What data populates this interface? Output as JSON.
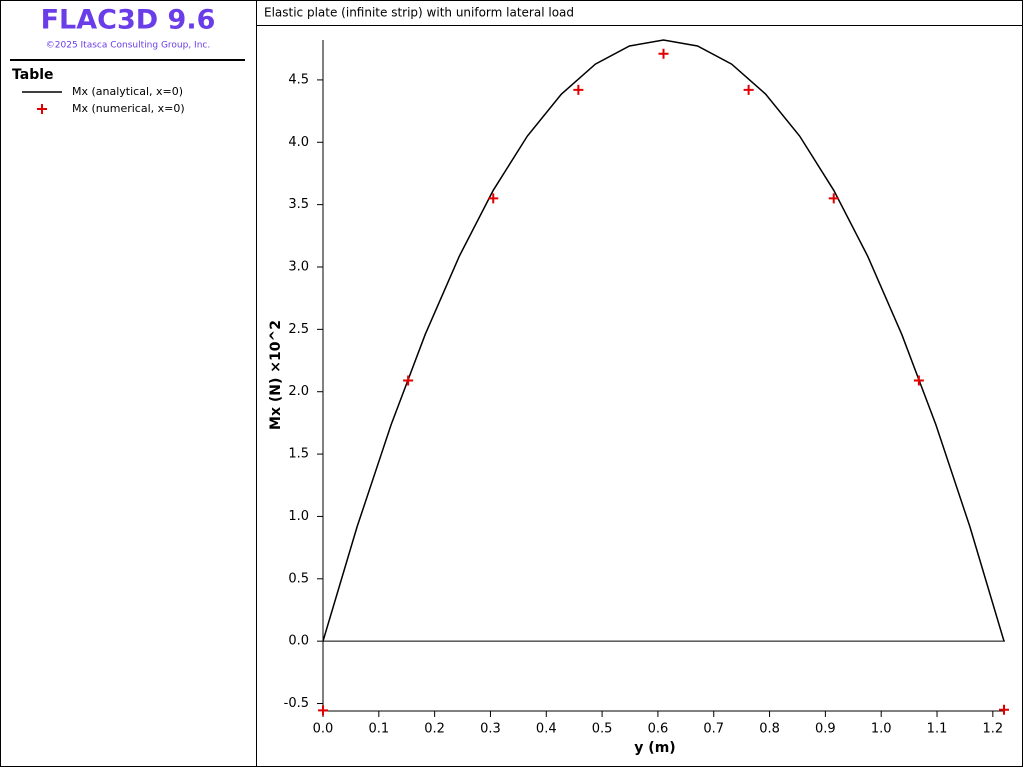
{
  "app": {
    "title": "FLAC3D 9.6",
    "copyright": "©2025 Itasca Consulting Group, Inc."
  },
  "chart_data": {
    "type": "line",
    "title": "Elastic plate (infinite strip) with uniform lateral load",
    "legend_title": "Table",
    "x_label": "y (m)",
    "y_label": "Mx (N) ×10^2",
    "xlim": [
      0,
      1.22
    ],
    "ylim": [
      -0.56,
      4.82
    ],
    "xticks": [
      {
        "value": 0,
        "label": "0.0"
      },
      0.1,
      0.2,
      0.3,
      0.4,
      0.5,
      0.6,
      0.7,
      0.8,
      0.9,
      {
        "value": 1,
        "label": "1.0"
      },
      1.1,
      1.2
    ],
    "yticks": [
      -0.5,
      {
        "value": 0,
        "label": "0.0"
      },
      0.5,
      {
        "value": 1,
        "label": "1.0"
      },
      1.5,
      {
        "value": 2,
        "label": "2.0"
      },
      2.5,
      {
        "value": 3,
        "label": "3.0"
      },
      3.5,
      {
        "value": 4,
        "label": "4.0"
      },
      4.5
    ],
    "series": [
      {
        "name": "Mx (analytical, x=0)",
        "color": "#000000",
        "style": "line",
        "x": [
          0,
          0.061,
          0.122,
          0.183,
          0.244,
          0.305,
          0.366,
          0.427,
          0.488,
          0.549,
          0.61,
          0.671,
          0.732,
          0.793,
          0.854,
          0.915,
          0.976,
          1.037,
          1.098,
          1.159,
          1.22
        ],
        "values": [
          0,
          0.916,
          1.735,
          2.458,
          3.085,
          3.615,
          4.049,
          4.386,
          4.627,
          4.772,
          4.82,
          4.772,
          4.627,
          4.386,
          4.049,
          3.615,
          3.085,
          2.458,
          1.735,
          0.916,
          0
        ]
      },
      {
        "name": "Mx (numerical, x=0)",
        "color": "#e00000",
        "style": "marker",
        "x": [
          0,
          0.1525,
          0.305,
          0.4575,
          0.61,
          0.7625,
          0.915,
          1.0675,
          1.22
        ],
        "values": [
          -0.555,
          2.09,
          3.55,
          4.42,
          4.71,
          4.42,
          3.55,
          2.09,
          -0.55
        ]
      }
    ]
  }
}
